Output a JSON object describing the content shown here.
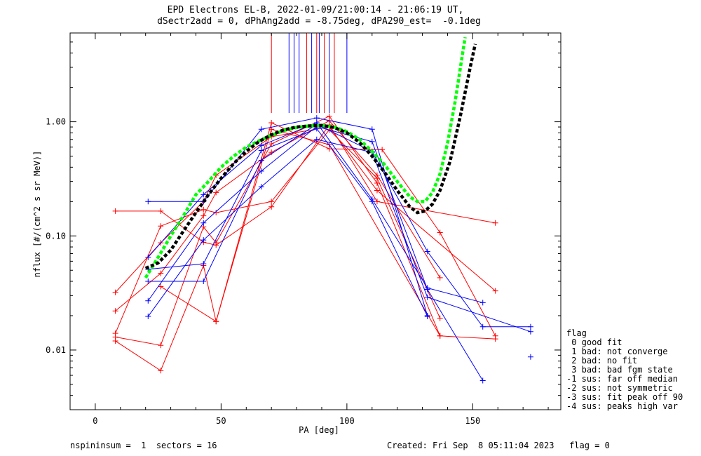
{
  "chart_data": {
    "type": "scatter",
    "title": "EPD Electrons EL-B, 2022-01-09/21:00:14 - 21:06:19 UT,",
    "subtitle": "dSectr2add = 0, dPhAng2add = -8.75deg, dPA290_est=  -0.1deg",
    "xlabel": "PA [deg]",
    "ylabel": "nflux [#/(cm^2 s sr MeV)]",
    "xlim": [
      -10,
      185
    ],
    "ylim": [
      0.003,
      6
    ],
    "yscale": "log",
    "x_ticks": [
      0,
      50,
      100,
      150
    ],
    "y_ticks": [
      0.01,
      0.1,
      1.0
    ],
    "y_tick_labels": [
      "0.01",
      "0.10",
      "1.00"
    ],
    "grid": false,
    "colors": {
      "red": "#ff0000",
      "blue": "#0000ff",
      "green": "#00ff00",
      "black": "#000000"
    },
    "series": [
      {
        "color": "red",
        "points": [
          [
            8,
            0.165
          ],
          [
            26,
            0.165
          ],
          [
            43,
            0.088
          ],
          [
            48,
            0.083
          ],
          [
            70,
            0.18
          ],
          [
            93,
            0.94
          ],
          [
            112,
            0.2
          ],
          [
            159,
            0.13
          ]
        ]
      },
      {
        "color": "red",
        "points": [
          [
            8,
            0.032
          ],
          [
            26,
            0.087
          ],
          [
            43,
            0.2
          ],
          [
            48,
            0.34
          ],
          [
            70,
            0.74
          ],
          [
            93,
            0.9
          ],
          [
            112,
            0.25
          ],
          [
            159,
            0.033
          ]
        ]
      },
      {
        "color": "red",
        "points": [
          [
            8,
            0.022
          ],
          [
            26,
            0.047
          ],
          [
            43,
            0.15
          ],
          [
            48,
            0.24
          ],
          [
            70,
            0.54
          ],
          [
            93,
            1.02
          ],
          [
            112,
            0.34
          ],
          [
            137,
            0.043
          ]
        ]
      },
      {
        "color": "red",
        "points": [
          [
            8,
            0.014
          ],
          [
            26,
            0.122
          ],
          [
            43,
            0.17
          ],
          [
            48,
            0.16
          ],
          [
            70,
            0.2
          ],
          [
            93,
            0.85
          ],
          [
            112,
            0.32
          ],
          [
            137,
            0.019
          ]
        ]
      },
      {
        "color": "red",
        "points": [
          [
            8,
            0.013
          ],
          [
            26,
            0.011
          ],
          [
            43,
            0.12
          ],
          [
            48,
            0.087
          ],
          [
            70,
            0.64
          ],
          [
            93,
            1.12
          ],
          [
            112,
            0.29
          ],
          [
            137,
            0.0133
          ]
        ]
      },
      {
        "color": "red",
        "points": [
          [
            8,
            0.012
          ],
          [
            26,
            0.0066
          ],
          [
            43,
            0.055
          ],
          [
            48,
            0.0178
          ],
          [
            70,
            0.98
          ],
          [
            93,
            0.58
          ],
          [
            114,
            0.57
          ],
          [
            137,
            0.107
          ],
          [
            159,
            0.0133
          ]
        ]
      },
      {
        "color": "red",
        "points": [
          [
            26,
            0.036
          ],
          [
            48,
            0.0178
          ],
          [
            70,
            0.86
          ],
          [
            93,
            0.63
          ],
          [
            137,
            0.0133
          ],
          [
            159,
            0.0125
          ]
        ]
      },
      {
        "color": "blue",
        "points": [
          [
            21,
            0.2
          ],
          [
            43,
            0.2
          ],
          [
            66,
            0.86
          ],
          [
            88,
            1.08
          ],
          [
            110,
            0.86
          ],
          [
            132,
            0.02
          ]
        ]
      },
      {
        "color": "blue",
        "points": [
          [
            21,
            0.065
          ],
          [
            43,
            0.23
          ],
          [
            66,
            0.62
          ],
          [
            88,
            0.98
          ],
          [
            110,
            0.21
          ],
          [
            132,
            0.035
          ],
          [
            154,
            0.026
          ]
        ]
      },
      {
        "color": "blue",
        "points": [
          [
            21,
            0.04
          ],
          [
            43,
            0.04
          ],
          [
            66,
            0.46
          ],
          [
            88,
            0.95
          ],
          [
            110,
            0.55
          ],
          [
            132,
            0.073
          ],
          [
            154,
            0.016
          ],
          [
            173,
            0.016
          ]
        ]
      },
      {
        "color": "blue",
        "points": [
          [
            21,
            0.027
          ],
          [
            43,
            0.13
          ],
          [
            66,
            0.37
          ],
          [
            88,
            0.91
          ],
          [
            110,
            0.67
          ],
          [
            132,
            0.034
          ],
          [
            154,
            0.0054
          ]
        ]
      },
      {
        "color": "blue",
        "points": [
          [
            21,
            0.0197
          ],
          [
            43,
            0.092
          ],
          [
            66,
            0.27
          ],
          [
            88,
            0.7
          ],
          [
            110,
            0.54
          ],
          [
            132,
            0.029
          ],
          [
            173,
            0.0145
          ]
        ]
      },
      {
        "color": "blue",
        "points": [
          [
            21,
            0.051
          ],
          [
            43,
            0.057
          ],
          [
            66,
            0.56
          ],
          [
            88,
            0.87
          ],
          [
            110,
            0.2
          ],
          [
            132,
            0.0197
          ]
        ]
      },
      {
        "color": "blue",
        "points": [
          [
            173,
            0.0087
          ]
        ]
      }
    ],
    "fits": [
      {
        "color": "green",
        "style": "dashed",
        "points": [
          [
            20,
            0.043
          ],
          [
            25,
            0.065
          ],
          [
            30,
            0.1
          ],
          [
            35,
            0.15
          ],
          [
            40,
            0.23
          ],
          [
            45,
            0.3
          ],
          [
            50,
            0.4
          ],
          [
            55,
            0.5
          ],
          [
            60,
            0.6
          ],
          [
            65,
            0.68
          ],
          [
            70,
            0.76
          ],
          [
            75,
            0.84
          ],
          [
            80,
            0.89
          ],
          [
            85,
            0.92
          ],
          [
            90,
            0.93
          ],
          [
            95,
            0.9
          ],
          [
            100,
            0.82
          ],
          [
            105,
            0.7
          ],
          [
            110,
            0.55
          ],
          [
            115,
            0.42
          ],
          [
            120,
            0.3
          ],
          [
            125,
            0.22
          ],
          [
            128,
            0.2
          ],
          [
            131,
            0.2
          ],
          [
            134,
            0.24
          ],
          [
            137,
            0.35
          ],
          [
            140,
            0.65
          ],
          [
            143,
            1.5
          ],
          [
            146,
            4.0
          ],
          [
            147,
            5.5
          ]
        ]
      },
      {
        "color": "black",
        "style": "dashed",
        "points": [
          [
            20,
            0.052
          ],
          [
            25,
            0.058
          ],
          [
            30,
            0.075
          ],
          [
            35,
            0.11
          ],
          [
            40,
            0.16
          ],
          [
            45,
            0.23
          ],
          [
            50,
            0.32
          ],
          [
            55,
            0.43
          ],
          [
            60,
            0.55
          ],
          [
            65,
            0.67
          ],
          [
            70,
            0.77
          ],
          [
            75,
            0.85
          ],
          [
            80,
            0.9
          ],
          [
            85,
            0.92
          ],
          [
            90,
            0.93
          ],
          [
            95,
            0.89
          ],
          [
            100,
            0.8
          ],
          [
            105,
            0.66
          ],
          [
            110,
            0.5
          ],
          [
            115,
            0.36
          ],
          [
            120,
            0.25
          ],
          [
            125,
            0.18
          ],
          [
            128,
            0.16
          ],
          [
            131,
            0.165
          ],
          [
            134,
            0.19
          ],
          [
            137,
            0.25
          ],
          [
            141,
            0.45
          ],
          [
            145,
            1.1
          ],
          [
            149,
            3.0
          ],
          [
            151,
            4.8
          ]
        ]
      }
    ],
    "vlines": [
      {
        "color": "red",
        "x": [
          70,
          84,
          88,
          91,
          95
        ]
      },
      {
        "color": "blue",
        "x": [
          77,
          79,
          81,
          86,
          89,
          93,
          100
        ]
      }
    ],
    "legend_position": "right-bottom"
  },
  "legend": {
    "title": "flag",
    "items": [
      " 0 good fit",
      " 1 bad: not converge",
      " 2 bad: no fit",
      " 3 bad: bad fgm state",
      "-1 sus: far off median",
      "-2 sus: not symmetric",
      "-3 sus: fit peak off 90",
      "-4 sus: peaks high var"
    ]
  },
  "footer": {
    "left": "nspininsum =  1  sectors = 16",
    "right": "Created: Fri Sep  8 05:11:04 2023   flag = 0"
  }
}
